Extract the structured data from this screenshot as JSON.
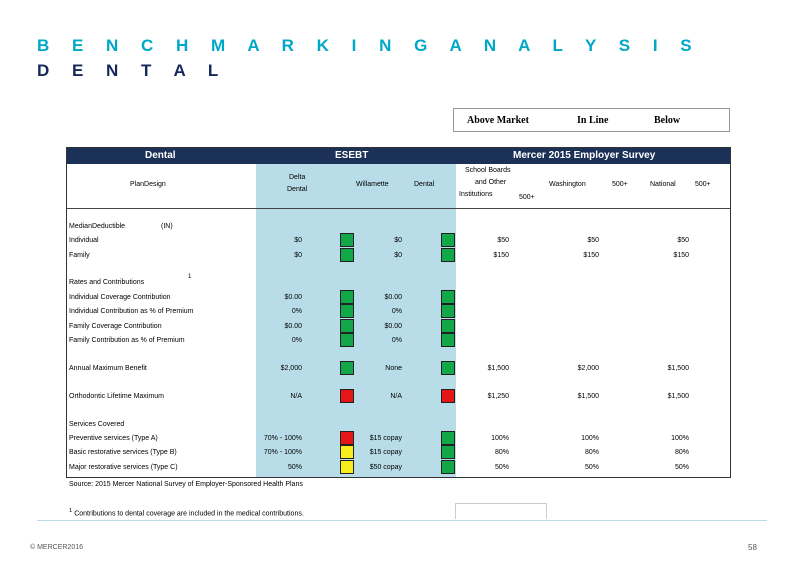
{
  "title": "B E N C H M A R K I N G  A N A L Y S I S",
  "subtitle": "D E N T A L",
  "legend": {
    "above": "Above Market",
    "inline": "In Line",
    "below": "Below"
  },
  "header": {
    "dental": "Dental",
    "esebt": "ESEBT",
    "survey": "Mercer 2015 Employer Survey"
  },
  "subheader": {
    "plan_design": "PlanDesign",
    "delta_1": "Delta",
    "delta_2": "Dental",
    "willamette": "Willamette",
    "willamette_dental": "Dental",
    "school_1": "School Boards",
    "school_2": "and Other",
    "school_3": "Institutions",
    "school_4": "500+",
    "washington": "Washington",
    "washington_size": "500+",
    "national": "National",
    "national_size": "500+"
  },
  "colors": {
    "green": "#12a84a",
    "red": "#e51616",
    "yellow": "#f7ec1c",
    "header": "#1c3158",
    "shade": "#b8dde8"
  },
  "rows": [
    {
      "label": "MedianDeductible",
      "extra": "(IN)"
    },
    {
      "label": "Individual",
      "delta": "$0",
      "dc": "green",
      "will": "$0",
      "wc": "green",
      "school": "$50",
      "wa": "$50",
      "nat": "$50"
    },
    {
      "label": "Family",
      "delta": "$0",
      "dc": "green",
      "will": "$0",
      "wc": "green",
      "school": "$150",
      "wa": "$150",
      "nat": "$150"
    },
    {
      "label": "Rates and Contributions",
      "sup": "1"
    },
    {
      "label": "Individual Coverage Contribution",
      "delta": "$0.00",
      "dc": "green",
      "will": "$0.00",
      "wc": "green"
    },
    {
      "label": "Individual Contribution as % of Premium",
      "delta": "0%",
      "dc": "green",
      "will": "0%",
      "wc": "green"
    },
    {
      "label": "Family Coverage Contribution",
      "delta": "$0.00",
      "dc": "green",
      "will": "$0.00",
      "wc": "green"
    },
    {
      "label": "Family Contribution as % of Premium",
      "delta": "0%",
      "dc": "green",
      "will": "0%",
      "wc": "green"
    },
    {
      "label": "Annual Maximum Benefit",
      "delta": "$2,000",
      "dc": "green",
      "will": "None",
      "wc": "green",
      "school": "$1,500",
      "wa": "$2,000",
      "nat": "$1,500"
    },
    {
      "label": "Orthodontic Lifetime Maximum",
      "delta": "N/A",
      "dc": "red",
      "will": "N/A",
      "wc": "red",
      "school": "$1,250",
      "wa": "$1,500",
      "nat": "$1,500"
    },
    {
      "label": "Services Covered"
    },
    {
      "label": "Preventive services (Type A)",
      "delta": "70% - 100%",
      "dc": "red",
      "will": "$15 copay",
      "wc": "green",
      "school": "100%",
      "wa": "100%",
      "nat": "100%"
    },
    {
      "label": "Basic restorative services (Type B)",
      "delta": "70% - 100%",
      "dc": "yellow",
      "will": "$15 copay",
      "wc": "green",
      "school": "80%",
      "wa": "80%",
      "nat": "80%"
    },
    {
      "label": "Major restorative services (Type C)",
      "delta": "50%",
      "dc": "yellow",
      "will": "$50 copay",
      "wc": "green",
      "school": "50%",
      "wa": "50%",
      "nat": "50%"
    }
  ],
  "source": "Source: 2015 Mercer National Survey of Employer-Sponsored Health Plans",
  "footnote_sup": "1",
  "footnote": "Contributions to dental coverage are included in the medical contributions.",
  "copyright": "© MERCER2016",
  "page": "58"
}
